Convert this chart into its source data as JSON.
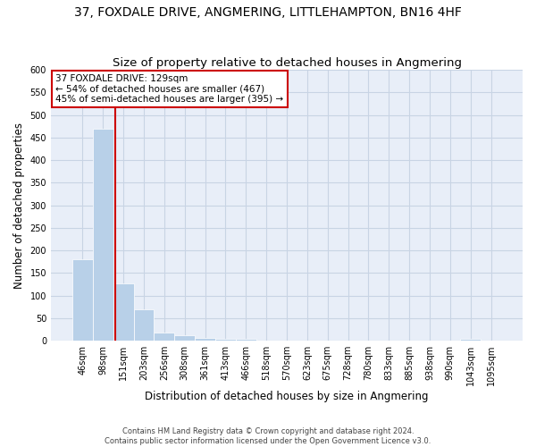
{
  "title": "37, FOXDALE DRIVE, ANGMERING, LITTLEHAMPTON, BN16 4HF",
  "subtitle": "Size of property relative to detached houses in Angmering",
  "xlabel": "Distribution of detached houses by size in Angmering",
  "ylabel": "Number of detached properties",
  "bin_labels": [
    "46sqm",
    "98sqm",
    "151sqm",
    "203sqm",
    "256sqm",
    "308sqm",
    "361sqm",
    "413sqm",
    "466sqm",
    "518sqm",
    "570sqm",
    "623sqm",
    "675sqm",
    "728sqm",
    "780sqm",
    "833sqm",
    "885sqm",
    "938sqm",
    "990sqm",
    "1043sqm",
    "1095sqm"
  ],
  "bar_values": [
    180,
    470,
    128,
    70,
    18,
    12,
    7,
    5,
    5,
    0,
    0,
    0,
    0,
    0,
    0,
    0,
    0,
    0,
    0,
    5,
    0
  ],
  "bar_color": "#b8d0e8",
  "bar_edgecolor": "white",
  "grid_color": "#c8d4e4",
  "background_color": "#e8eef8",
  "vline_x": 1.6,
  "vline_color": "#cc0000",
  "annotation_text": "37 FOXDALE DRIVE: 129sqm\n← 54% of detached houses are smaller (467)\n45% of semi-detached houses are larger (395) →",
  "annotation_box_color": "#ffffff",
  "annotation_border_color": "#cc0000",
  "ylim": [
    0,
    600
  ],
  "yticks": [
    0,
    50,
    100,
    150,
    200,
    250,
    300,
    350,
    400,
    450,
    500,
    550,
    600
  ],
  "footnote": "Contains HM Land Registry data © Crown copyright and database right 2024.\nContains public sector information licensed under the Open Government Licence v3.0.",
  "title_fontsize": 10,
  "subtitle_fontsize": 9.5,
  "label_fontsize": 8.5,
  "tick_fontsize": 7,
  "annotation_fontsize": 7.5,
  "footnote_fontsize": 6
}
